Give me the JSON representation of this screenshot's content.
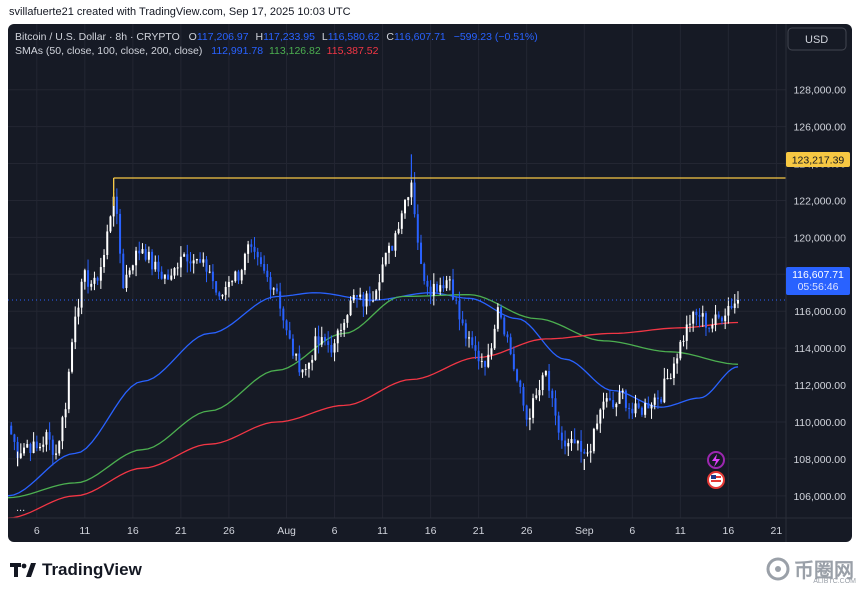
{
  "header": {
    "credit": "svillafuerte21 created with TradingView.com, Sep 17, 2025 10:03 UTC"
  },
  "legend": {
    "symbol": "Bitcoin / U.S. Dollar · 8h · CRYPTO",
    "o_label": "O",
    "o_value": "117,206.97",
    "h_label": "H",
    "h_value": "117,233.95",
    "l_label": "L",
    "l_value": "116,580.62",
    "c_label": "C",
    "c_value": "116,607.71",
    "change": "−599.23 (−0.51%)",
    "sma_label": "SMAs (50, close, 100, close, 200, close)",
    "sma50_value": "112,991.78",
    "sma100_value": "113,126.82",
    "sma200_value": "115,387.52"
  },
  "currency_button": "USD",
  "collapse_dots": "...",
  "footer": {
    "logo_text": "TradingView",
    "watermark_text": "币圈网",
    "watermark_sub": "ALIBTC.COM"
  },
  "colors": {
    "background": "#161a25",
    "bull": "#ffffff",
    "bear": "#2962ff",
    "sma50": "#2962ff",
    "sma100": "#4caf50",
    "sma200": "#f23645",
    "resistance": "#f7c843",
    "price_label": "#2962ff",
    "grid": "#232632"
  },
  "chart_data": {
    "type": "candlestick",
    "symbol": "Bitcoin / U.S. Dollar",
    "timeframe": "8h",
    "x_range": [
      "2025-07-03",
      "2025-09-22"
    ],
    "y_range": [
      104800,
      129500
    ],
    "y_ticks": [
      106000,
      108000,
      110000,
      112000,
      114000,
      116000,
      118000,
      120000,
      122000,
      124000,
      126000,
      128000
    ],
    "y_tick_labels": [
      "106,000.00",
      "108,000.00",
      "110,000.00",
      "112,000.00",
      "114,000.00",
      "116,000.00",
      "118,000.00",
      "120,000.00",
      "122,000.00",
      "124,000.00",
      "126,000.00",
      "128,000.00"
    ],
    "x_ticks": [
      {
        "date": "2025-07-06",
        "label": "6"
      },
      {
        "date": "2025-07-11",
        "label": "11"
      },
      {
        "date": "2025-07-16",
        "label": "16"
      },
      {
        "date": "2025-07-21",
        "label": "21"
      },
      {
        "date": "2025-07-26",
        "label": "26"
      },
      {
        "date": "2025-08-01",
        "label": "Aug"
      },
      {
        "date": "2025-08-06",
        "label": "6"
      },
      {
        "date": "2025-08-11",
        "label": "11"
      },
      {
        "date": "2025-08-16",
        "label": "16"
      },
      {
        "date": "2025-08-21",
        "label": "21"
      },
      {
        "date": "2025-08-26",
        "label": "26"
      },
      {
        "date": "2025-09-01",
        "label": "Sep"
      },
      {
        "date": "2025-09-06",
        "label": "6"
      },
      {
        "date": "2025-09-11",
        "label": "11"
      },
      {
        "date": "2025-09-16",
        "label": "16"
      },
      {
        "date": "2025-09-21",
        "label": "21"
      }
    ],
    "close_path": [
      [
        "2025-07-03",
        109800
      ],
      [
        "2025-07-04",
        108400
      ],
      [
        "2025-07-05",
        108800
      ],
      [
        "2025-07-06",
        108500
      ],
      [
        "2025-07-07",
        109200
      ],
      [
        "2025-07-08",
        108300
      ],
      [
        "2025-07-09",
        111000
      ],
      [
        "2025-07-10",
        116000
      ],
      [
        "2025-07-11",
        117800
      ],
      [
        "2025-07-12",
        117400
      ],
      [
        "2025-07-13",
        119000
      ],
      [
        "2025-07-14",
        122500
      ],
      [
        "2025-07-15",
        117500
      ],
      [
        "2025-07-16",
        118800
      ],
      [
        "2025-07-17",
        119500
      ],
      [
        "2025-07-18",
        118500
      ],
      [
        "2025-07-19",
        118000
      ],
      [
        "2025-07-20",
        117700
      ],
      [
        "2025-07-21",
        119200
      ],
      [
        "2025-07-22",
        119000
      ],
      [
        "2025-07-23",
        118500
      ],
      [
        "2025-07-24",
        118200
      ],
      [
        "2025-07-25",
        116500
      ],
      [
        "2025-07-26",
        117800
      ],
      [
        "2025-07-27",
        118000
      ],
      [
        "2025-07-28",
        119300
      ],
      [
        "2025-07-29",
        118600
      ],
      [
        "2025-07-30",
        117800
      ],
      [
        "2025-07-31",
        117200
      ],
      [
        "2025-08-01",
        114800
      ],
      [
        "2025-08-02",
        113300
      ],
      [
        "2025-08-03",
        112800
      ],
      [
        "2025-08-04",
        114200
      ],
      [
        "2025-08-05",
        114300
      ],
      [
        "2025-08-06",
        114000
      ],
      [
        "2025-08-07",
        115800
      ],
      [
        "2025-08-08",
        116700
      ],
      [
        "2025-08-09",
        116500
      ],
      [
        "2025-08-10",
        117000
      ],
      [
        "2025-08-11",
        118500
      ],
      [
        "2025-08-12",
        119600
      ],
      [
        "2025-08-13",
        121500
      ],
      [
        "2025-08-14",
        123100
      ],
      [
        "2025-08-15",
        118300
      ],
      [
        "2025-08-16",
        117300
      ],
      [
        "2025-08-17",
        117500
      ],
      [
        "2025-08-18",
        117800
      ],
      [
        "2025-08-19",
        115600
      ],
      [
        "2025-08-20",
        114200
      ],
      [
        "2025-08-21",
        113500
      ],
      [
        "2025-08-22",
        113300
      ],
      [
        "2025-08-23",
        116500
      ],
      [
        "2025-08-24",
        114500
      ],
      [
        "2025-08-25",
        112200
      ],
      [
        "2025-08-26",
        110200
      ],
      [
        "2025-08-27",
        111300
      ],
      [
        "2025-08-28",
        112600
      ],
      [
        "2025-08-29",
        110000
      ],
      [
        "2025-08-30",
        108500
      ],
      [
        "2025-08-31",
        108800
      ],
      [
        "2025-09-01",
        108000
      ],
      [
        "2025-09-02",
        109200
      ],
      [
        "2025-09-03",
        111200
      ],
      [
        "2025-09-04",
        110800
      ],
      [
        "2025-09-05",
        111500
      ],
      [
        "2025-09-06",
        110500
      ],
      [
        "2025-09-07",
        110700
      ],
      [
        "2025-09-08",
        111200
      ],
      [
        "2025-09-09",
        111500
      ],
      [
        "2025-09-10",
        112800
      ],
      [
        "2025-09-11",
        114200
      ],
      [
        "2025-09-12",
        115500
      ],
      [
        "2025-09-13",
        115800
      ],
      [
        "2025-09-14",
        115200
      ],
      [
        "2025-09-15",
        115600
      ],
      [
        "2025-09-16",
        116300
      ],
      [
        "2025-09-17",
        116607.71
      ]
    ],
    "extremes": [
      [
        "2025-07-14",
        123217.39,
        "high"
      ],
      [
        "2025-08-14",
        124500,
        "high"
      ],
      [
        "2025-07-04",
        107600,
        "low"
      ],
      [
        "2025-09-01",
        107400,
        "low"
      ]
    ],
    "sma": [
      {
        "name": "SMA 50",
        "color": "#2962ff",
        "points": [
          [
            "2025-07-03",
            106000
          ],
          [
            "2025-07-10",
            108300
          ],
          [
            "2025-07-17",
            112200
          ],
          [
            "2025-07-24",
            114800
          ],
          [
            "2025-07-31",
            116800
          ],
          [
            "2025-08-04",
            117000
          ],
          [
            "2025-08-10",
            116600
          ],
          [
            "2025-08-16",
            117000
          ],
          [
            "2025-08-20",
            116700
          ],
          [
            "2025-08-25",
            115600
          ],
          [
            "2025-08-30",
            113400
          ],
          [
            "2025-09-04",
            111700
          ],
          [
            "2025-09-09",
            110800
          ],
          [
            "2025-09-13",
            111300
          ],
          [
            "2025-09-17",
            112991.78
          ]
        ]
      },
      {
        "name": "SMA 100",
        "color": "#4caf50",
        "points": [
          [
            "2025-07-03",
            105900
          ],
          [
            "2025-07-10",
            106700
          ],
          [
            "2025-07-17",
            108500
          ],
          [
            "2025-07-24",
            110600
          ],
          [
            "2025-07-31",
            112800
          ],
          [
            "2025-08-07",
            114800
          ],
          [
            "2025-08-13",
            116800
          ],
          [
            "2025-08-20",
            116900
          ],
          [
            "2025-08-27",
            115600
          ],
          [
            "2025-09-03",
            114400
          ],
          [
            "2025-09-10",
            113800
          ],
          [
            "2025-09-17",
            113126.82
          ]
        ]
      },
      {
        "name": "SMA 200",
        "color": "#f23645",
        "points": [
          [
            "2025-07-03",
            104800
          ],
          [
            "2025-07-10",
            106000
          ],
          [
            "2025-07-17",
            107500
          ],
          [
            "2025-07-24",
            108800
          ],
          [
            "2025-07-31",
            110000
          ],
          [
            "2025-08-07",
            110900
          ],
          [
            "2025-08-14",
            112300
          ],
          [
            "2025-08-21",
            113500
          ],
          [
            "2025-08-28",
            114500
          ],
          [
            "2025-09-04",
            114800
          ],
          [
            "2025-09-11",
            115100
          ],
          [
            "2025-09-17",
            115387.52
          ]
        ]
      }
    ],
    "resistance": {
      "from": "2025-07-14",
      "to": "2025-09-22",
      "value": 123217.39,
      "label": "123,217.39"
    },
    "last_price": {
      "value": 116607.71,
      "label": "116,607.71",
      "countdown": "05:56:46"
    }
  }
}
